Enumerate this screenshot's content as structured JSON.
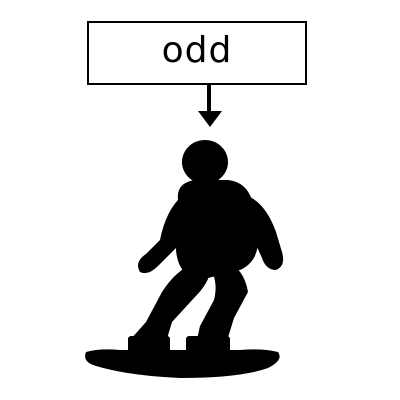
{
  "label": {
    "text": "odd"
  },
  "figure": {
    "icon": "snowboarder-icon",
    "color": "#000000"
  },
  "pointer": {
    "icon": "arrow-down-icon"
  }
}
